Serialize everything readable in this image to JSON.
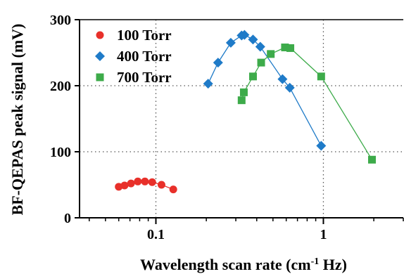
{
  "chart_data": {
    "type": "scatter",
    "x_scale": "log",
    "xlim": [
      0.035,
      3.0
    ],
    "ylim": [
      0,
      300
    ],
    "x_ticks": [
      {
        "value": 0.1,
        "label": "0.1"
      },
      {
        "value": 1,
        "label": "1"
      }
    ],
    "y_ticks": [
      {
        "value": 0,
        "label": "0"
      },
      {
        "value": 100,
        "label": "100"
      },
      {
        "value": 200,
        "label": "200"
      },
      {
        "value": 300,
        "label": "300"
      }
    ],
    "xlabel_main": "Wavelength scan rate (cm",
    "xlabel_sup": "-1",
    "xlabel_end": " Hz)",
    "ylabel": "BF-QEPAS peak signal (mV)",
    "grid": "dotted at y=100, y=200 and x=0.1, x=1",
    "legend_position": "top-left",
    "series": [
      {
        "name": "100 Torr",
        "marker": "circle",
        "color": "#e8302a",
        "x": [
          0.06,
          0.065,
          0.071,
          0.078,
          0.086,
          0.095,
          0.108,
          0.127
        ],
        "y": [
          47,
          49,
          52,
          55,
          55,
          54,
          50,
          43
        ]
      },
      {
        "name": "400 Torr",
        "marker": "diamond",
        "color": "#1f7bc8",
        "x": [
          0.205,
          0.235,
          0.28,
          0.325,
          0.338,
          0.38,
          0.42,
          0.57,
          0.63,
          0.97
        ],
        "y": [
          203,
          235,
          265,
          276,
          277,
          270,
          259,
          210,
          197,
          109
        ]
      },
      {
        "name": "700 Torr",
        "marker": "square",
        "color": "#3dab4a",
        "x": [
          0.325,
          0.335,
          0.38,
          0.425,
          0.485,
          0.59,
          0.635,
          0.97,
          1.95
        ],
        "y": [
          178,
          190,
          214,
          235,
          248,
          258,
          257,
          214,
          88
        ]
      }
    ]
  }
}
